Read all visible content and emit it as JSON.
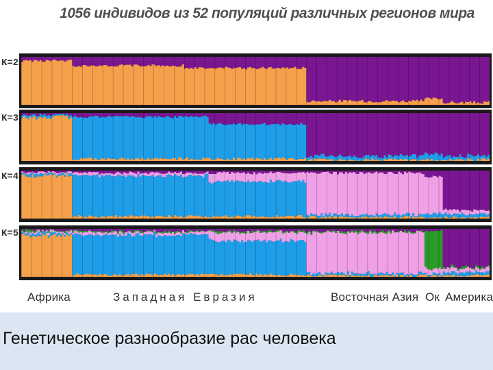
{
  "title": "1056 индивидов из 52 популяций различных регионов мира",
  "caption": "Генетическое разнообразие рас человека",
  "regions": {
    "africa": "Африка",
    "western_eurasia": "Западная Евразия",
    "east_asia": "Восточная Азия",
    "oceania": "Ок",
    "america": "Америка"
  },
  "colors": {
    "orange": "#f5a04a",
    "blue": "#1e9ee8",
    "purple": "#7a1691",
    "pink": "#f0a0e6",
    "green": "#2a9a2a",
    "frame": "#1a1a1a"
  },
  "chart_data": {
    "type": "stacked-bar",
    "x_segments": [
      {
        "label": "Африка",
        "share": 0.11
      },
      {
        "label": "Западная Евразия",
        "share": 0.5
      },
      {
        "label": "Восточная Азия",
        "share": 0.25
      },
      {
        "label": "Ок",
        "share": 0.04
      },
      {
        "label": "Америка",
        "share": 0.1
      }
    ],
    "panels": [
      {
        "k_label": "K=2",
        "clusters": [
          "orange",
          "purple"
        ],
        "segments": [
          {
            "start": 0.0,
            "end": 0.11,
            "profile": [
              0.95,
              0.05
            ]
          },
          {
            "start": 0.11,
            "end": 0.35,
            "profile": [
              0.85,
              0.15
            ]
          },
          {
            "start": 0.35,
            "end": 0.61,
            "profile": [
              0.8,
              0.2
            ]
          },
          {
            "start": 0.61,
            "end": 0.86,
            "profile": [
              0.05,
              0.95
            ]
          },
          {
            "start": 0.86,
            "end": 0.9,
            "profile": [
              0.1,
              0.9
            ]
          },
          {
            "start": 0.9,
            "end": 1.0,
            "profile": [
              0.02,
              0.98
            ]
          }
        ]
      },
      {
        "k_label": "K=3",
        "clusters": [
          "orange",
          "blue",
          "purple"
        ],
        "segments": [
          {
            "start": 0.0,
            "end": 0.11,
            "profile": [
              0.97,
              0.02,
              0.01
            ]
          },
          {
            "start": 0.11,
            "end": 0.4,
            "profile": [
              0.02,
              0.93,
              0.05
            ]
          },
          {
            "start": 0.4,
            "end": 0.61,
            "profile": [
              0.02,
              0.78,
              0.2
            ]
          },
          {
            "start": 0.61,
            "end": 0.86,
            "profile": [
              0.0,
              0.05,
              0.95
            ]
          },
          {
            "start": 0.86,
            "end": 0.9,
            "profile": [
              0.0,
              0.1,
              0.9
            ]
          },
          {
            "start": 0.9,
            "end": 1.0,
            "profile": [
              0.0,
              0.05,
              0.95
            ]
          }
        ]
      },
      {
        "k_label": "K=4",
        "clusters": [
          "orange",
          "blue",
          "pink",
          "purple"
        ],
        "segments": [
          {
            "start": 0.0,
            "end": 0.11,
            "profile": [
              0.97,
              0.02,
              0.01,
              0.0
            ]
          },
          {
            "start": 0.11,
            "end": 0.4,
            "profile": [
              0.02,
              0.93,
              0.03,
              0.02
            ]
          },
          {
            "start": 0.4,
            "end": 0.61,
            "profile": [
              0.02,
              0.8,
              0.16,
              0.02
            ]
          },
          {
            "start": 0.61,
            "end": 0.86,
            "profile": [
              0.0,
              0.02,
              0.96,
              0.02
            ]
          },
          {
            "start": 0.86,
            "end": 0.9,
            "profile": [
              0.0,
              0.05,
              0.85,
              0.1
            ]
          },
          {
            "start": 0.9,
            "end": 1.0,
            "profile": [
              0.0,
              0.04,
              0.06,
              0.9
            ]
          }
        ]
      },
      {
        "k_label": "K=5",
        "clusters": [
          "orange",
          "blue",
          "pink",
          "green",
          "purple"
        ],
        "segments": [
          {
            "start": 0.0,
            "end": 0.11,
            "profile": [
              0.97,
              0.02,
              0.01,
              0.0,
              0.0
            ]
          },
          {
            "start": 0.11,
            "end": 0.4,
            "profile": [
              0.02,
              0.93,
              0.03,
              0.0,
              0.02
            ]
          },
          {
            "start": 0.4,
            "end": 0.61,
            "profile": [
              0.02,
              0.8,
              0.16,
              0.0,
              0.02
            ]
          },
          {
            "start": 0.61,
            "end": 0.86,
            "profile": [
              0.0,
              0.02,
              0.96,
              0.0,
              0.02
            ]
          },
          {
            "start": 0.86,
            "end": 0.9,
            "profile": [
              0.0,
              0.02,
              0.08,
              0.9,
              0.0
            ]
          },
          {
            "start": 0.9,
            "end": 1.0,
            "profile": [
              0.0,
              0.04,
              0.06,
              0.0,
              0.9
            ]
          }
        ]
      }
    ]
  }
}
